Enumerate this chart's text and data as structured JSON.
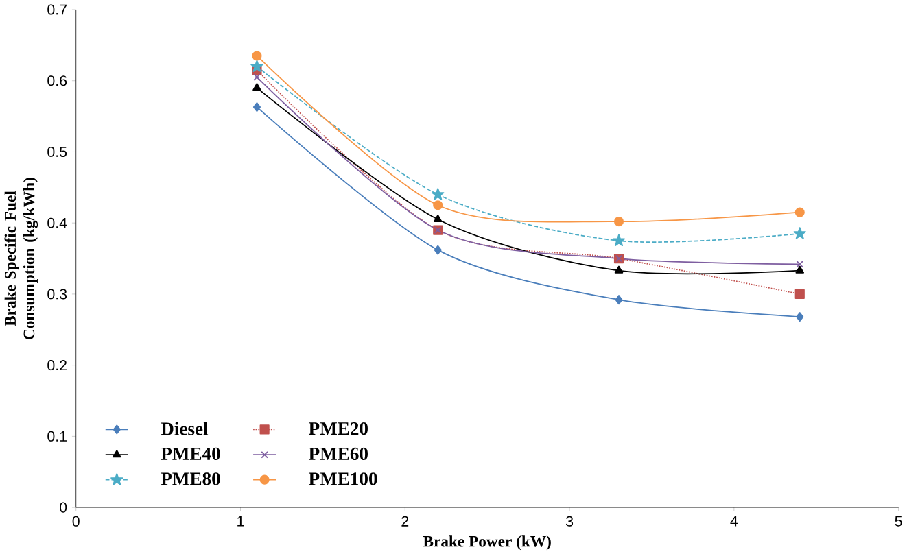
{
  "chart_data": {
    "type": "line",
    "xlabel": "Brake Power (kW)",
    "ylabel": "Brake Specific Fuel Consumption (kg/kWh)",
    "x": [
      1.1,
      2.2,
      3.3,
      4.4
    ],
    "xlim": [
      0,
      5
    ],
    "xticks": [
      0,
      1,
      2,
      3,
      4,
      5
    ],
    "ylim": [
      0,
      0.7
    ],
    "yticks": [
      0,
      0.1,
      0.2,
      0.3,
      0.4,
      0.5,
      0.6,
      0.7
    ],
    "grid": false,
    "legend": "bottom left",
    "series": [
      {
        "name": "Diesel",
        "color": "#4a7ebb",
        "marker": "diamond",
        "line_style": "solid",
        "values": [
          0.563,
          0.362,
          0.292,
          0.268
        ]
      },
      {
        "name": "PME20",
        "color": "#c0504d",
        "marker": "square",
        "line_style": "dotted",
        "values": [
          0.615,
          0.39,
          0.35,
          0.3
        ]
      },
      {
        "name": "PME40",
        "color": "#000000",
        "marker": "triangle",
        "line_style": "solid",
        "values": [
          0.59,
          0.405,
          0.333,
          0.333
        ]
      },
      {
        "name": "PME60",
        "color": "#7e5ea0",
        "marker": "cross",
        "line_style": "solid",
        "values": [
          0.605,
          0.39,
          0.35,
          0.342
        ]
      },
      {
        "name": "PME80",
        "color": "#4bacc6",
        "marker": "star",
        "line_style": "dashed",
        "values": [
          0.62,
          0.44,
          0.375,
          0.385
        ]
      },
      {
        "name": "PME100",
        "color": "#f79646",
        "marker": "circle",
        "line_style": "solid",
        "values": [
          0.635,
          0.425,
          0.402,
          0.415
        ]
      }
    ]
  }
}
